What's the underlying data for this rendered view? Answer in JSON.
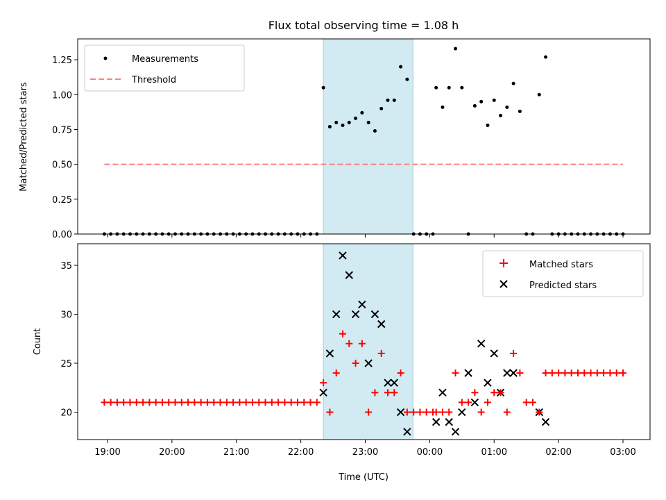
{
  "chart_data": {
    "title": "Flux total observing time = 1.08 h",
    "shaded_region": {
      "start": "22:21",
      "end": "23:27",
      "color": "#add8e6"
    },
    "x_tick_labels": [
      "19:00",
      "20:00",
      "21:00",
      "22:00",
      "23:00",
      "00:00",
      "01:00",
      "02:00",
      "03:00"
    ],
    "xlabel": "Time (UTC)",
    "top": {
      "type": "scatter",
      "ylabel": "Matched/Predicted stars",
      "ylim": [
        0,
        1.4
      ],
      "y_ticks": [
        0,
        0.25,
        0.5,
        0.75,
        1.0,
        1.25
      ],
      "y_tick_labels": [
        "0.00",
        "0.25",
        "0.50",
        "0.75",
        "1.00",
        "1.25"
      ],
      "legend": {
        "measurements": "Measurements",
        "threshold": "Threshold"
      },
      "threshold": 0.5,
      "threshold_color": "#ff7f7f",
      "measurements": [
        [
          "22:21",
          1.05
        ],
        [
          "22:27",
          0.77
        ],
        [
          "22:33",
          0.8
        ],
        [
          "22:39",
          0.78
        ],
        [
          "22:45",
          0.8
        ],
        [
          "22:51",
          0.83
        ],
        [
          "22:57",
          0.87
        ],
        [
          "23:03",
          0.8
        ],
        [
          "23:09",
          0.74
        ],
        [
          "23:15",
          0.9
        ],
        [
          "23:21",
          0.96
        ],
        [
          "23:27",
          0.96
        ],
        [
          "23:33",
          1.2
        ],
        [
          "23:39",
          1.11
        ],
        [
          "00:06",
          1.05
        ],
        [
          "00:12",
          0.91
        ],
        [
          "00:18",
          1.05
        ],
        [
          "00:24",
          1.33
        ],
        [
          "00:30",
          1.05
        ],
        [
          "00:36",
          0.0
        ],
        [
          "00:42",
          0.92
        ],
        [
          "00:48",
          0.95
        ],
        [
          "00:54",
          0.78
        ],
        [
          "01:00",
          0.96
        ],
        [
          "01:06",
          0.85
        ],
        [
          "01:12",
          0.91
        ],
        [
          "01:18",
          1.08
        ],
        [
          "01:24",
          0.88
        ],
        [
          "01:30",
          0.0
        ],
        [
          "01:36",
          0.0
        ],
        [
          "01:42",
          1.0
        ],
        [
          "01:48",
          1.27
        ]
      ],
      "zero_runs": [
        {
          "start": "18:57",
          "end": "22:15",
          "step_min": 6
        },
        {
          "start": "23:45",
          "end": "00:03",
          "step_min": 6
        },
        {
          "start": "01:54",
          "end": "03:00",
          "step_min": 6
        }
      ]
    },
    "bottom": {
      "type": "scatter",
      "ylabel": "Count",
      "ylim": [
        17.2,
        37.2
      ],
      "y_ticks": [
        20,
        25,
        30,
        35
      ],
      "y_tick_labels": [
        "20",
        "25",
        "30",
        "35"
      ],
      "legend": {
        "matched": "Matched stars",
        "predicted": "Predicted stars"
      },
      "matched_color": "#ff0000",
      "predicted_color": "#000000",
      "matched_runs": [
        {
          "start": "18:57",
          "end": "22:15",
          "step_min": 6,
          "value": 21
        },
        {
          "start": "23:45",
          "end": "00:03",
          "step_min": 6,
          "value": 20
        },
        {
          "start": "01:54",
          "end": "03:00",
          "step_min": 6,
          "value": 24
        }
      ],
      "matched": [
        [
          "22:21",
          23
        ],
        [
          "22:27",
          20
        ],
        [
          "22:33",
          24
        ],
        [
          "22:39",
          28
        ],
        [
          "22:45",
          27
        ],
        [
          "22:51",
          25
        ],
        [
          "22:57",
          27
        ],
        [
          "23:03",
          20
        ],
        [
          "23:09",
          22
        ],
        [
          "23:15",
          26
        ],
        [
          "23:21",
          22
        ],
        [
          "23:27",
          22
        ],
        [
          "23:33",
          24
        ],
        [
          "23:39",
          20
        ],
        [
          "00:06",
          20
        ],
        [
          "00:12",
          20
        ],
        [
          "00:18",
          20
        ],
        [
          "00:24",
          24
        ],
        [
          "00:30",
          21
        ],
        [
          "00:36",
          21
        ],
        [
          "00:42",
          22
        ],
        [
          "00:48",
          20
        ],
        [
          "00:54",
          21
        ],
        [
          "01:00",
          22
        ],
        [
          "01:06",
          22
        ],
        [
          "01:12",
          20
        ],
        [
          "01:18",
          26
        ],
        [
          "01:24",
          24
        ],
        [
          "01:30",
          21
        ],
        [
          "01:36",
          21
        ],
        [
          "01:42",
          20
        ],
        [
          "01:48",
          24
        ]
      ],
      "predicted": [
        [
          "22:21",
          22
        ],
        [
          "22:27",
          26
        ],
        [
          "22:33",
          30
        ],
        [
          "22:39",
          36
        ],
        [
          "22:45",
          34
        ],
        [
          "22:51",
          30
        ],
        [
          "22:57",
          31
        ],
        [
          "23:03",
          25
        ],
        [
          "23:09",
          30
        ],
        [
          "23:15",
          29
        ],
        [
          "23:21",
          23
        ],
        [
          "23:27",
          23
        ],
        [
          "23:33",
          20
        ],
        [
          "23:39",
          18
        ],
        [
          "00:06",
          19
        ],
        [
          "00:12",
          22
        ],
        [
          "00:18",
          19
        ],
        [
          "00:24",
          18
        ],
        [
          "00:30",
          20
        ],
        [
          "00:36",
          24
        ],
        [
          "00:42",
          21
        ],
        [
          "00:48",
          27
        ],
        [
          "00:54",
          23
        ],
        [
          "01:00",
          26
        ],
        [
          "01:06",
          22
        ],
        [
          "01:12",
          24
        ],
        [
          "01:18",
          24
        ],
        [
          "01:42",
          20
        ],
        [
          "01:48",
          19
        ]
      ]
    }
  }
}
